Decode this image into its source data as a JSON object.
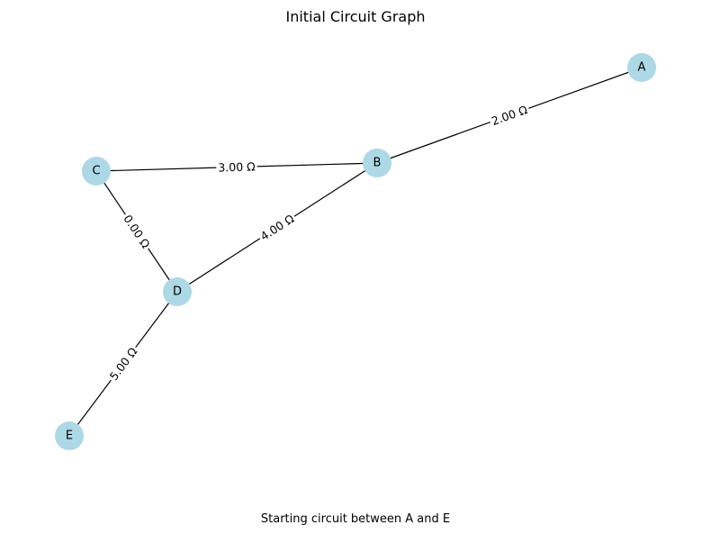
{
  "title": "Initial Circuit Graph",
  "caption": "Starting circuit between A and E",
  "colors": {
    "node_fill": "#add8e6",
    "edge": "#000000",
    "background": "#ffffff"
  },
  "nodes": [
    {
      "id": "A",
      "label": "A"
    },
    {
      "id": "B",
      "label": "B"
    },
    {
      "id": "C",
      "label": "C"
    },
    {
      "id": "D",
      "label": "D"
    },
    {
      "id": "E",
      "label": "E"
    }
  ],
  "edges": [
    {
      "source": "B",
      "target": "A",
      "label": "2.00 Ω"
    },
    {
      "source": "C",
      "target": "B",
      "label": "3.00 Ω"
    },
    {
      "source": "C",
      "target": "D",
      "label": "0.00 Ω"
    },
    {
      "source": "D",
      "target": "B",
      "label": "4.00 Ω"
    },
    {
      "source": "E",
      "target": "D",
      "label": "5.00 Ω"
    }
  ]
}
